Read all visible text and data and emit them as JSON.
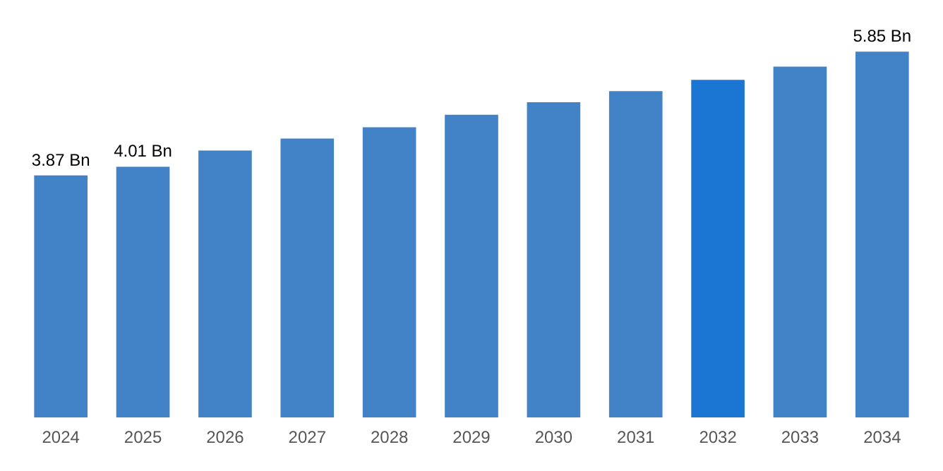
{
  "chart_data": {
    "type": "bar",
    "categories": [
      "2024",
      "2025",
      "2026",
      "2027",
      "2028",
      "2029",
      "2030",
      "2031",
      "2032",
      "2033",
      "2034"
    ],
    "values": [
      3.87,
      4.01,
      4.27,
      4.46,
      4.64,
      4.84,
      5.04,
      5.22,
      5.4,
      5.61,
      5.85
    ],
    "colors": [
      "#4282c6",
      "#4282c6",
      "#4282c6",
      "#4282c6",
      "#4282c6",
      "#4282c6",
      "#4282c6",
      "#4282c6",
      "#1a76d2",
      "#4282c6",
      "#4282c6"
    ],
    "value_labels": [
      "3.87 Bn",
      "4.01 Bn",
      null,
      null,
      null,
      null,
      null,
      null,
      null,
      null,
      "5.85 Bn"
    ]
  }
}
